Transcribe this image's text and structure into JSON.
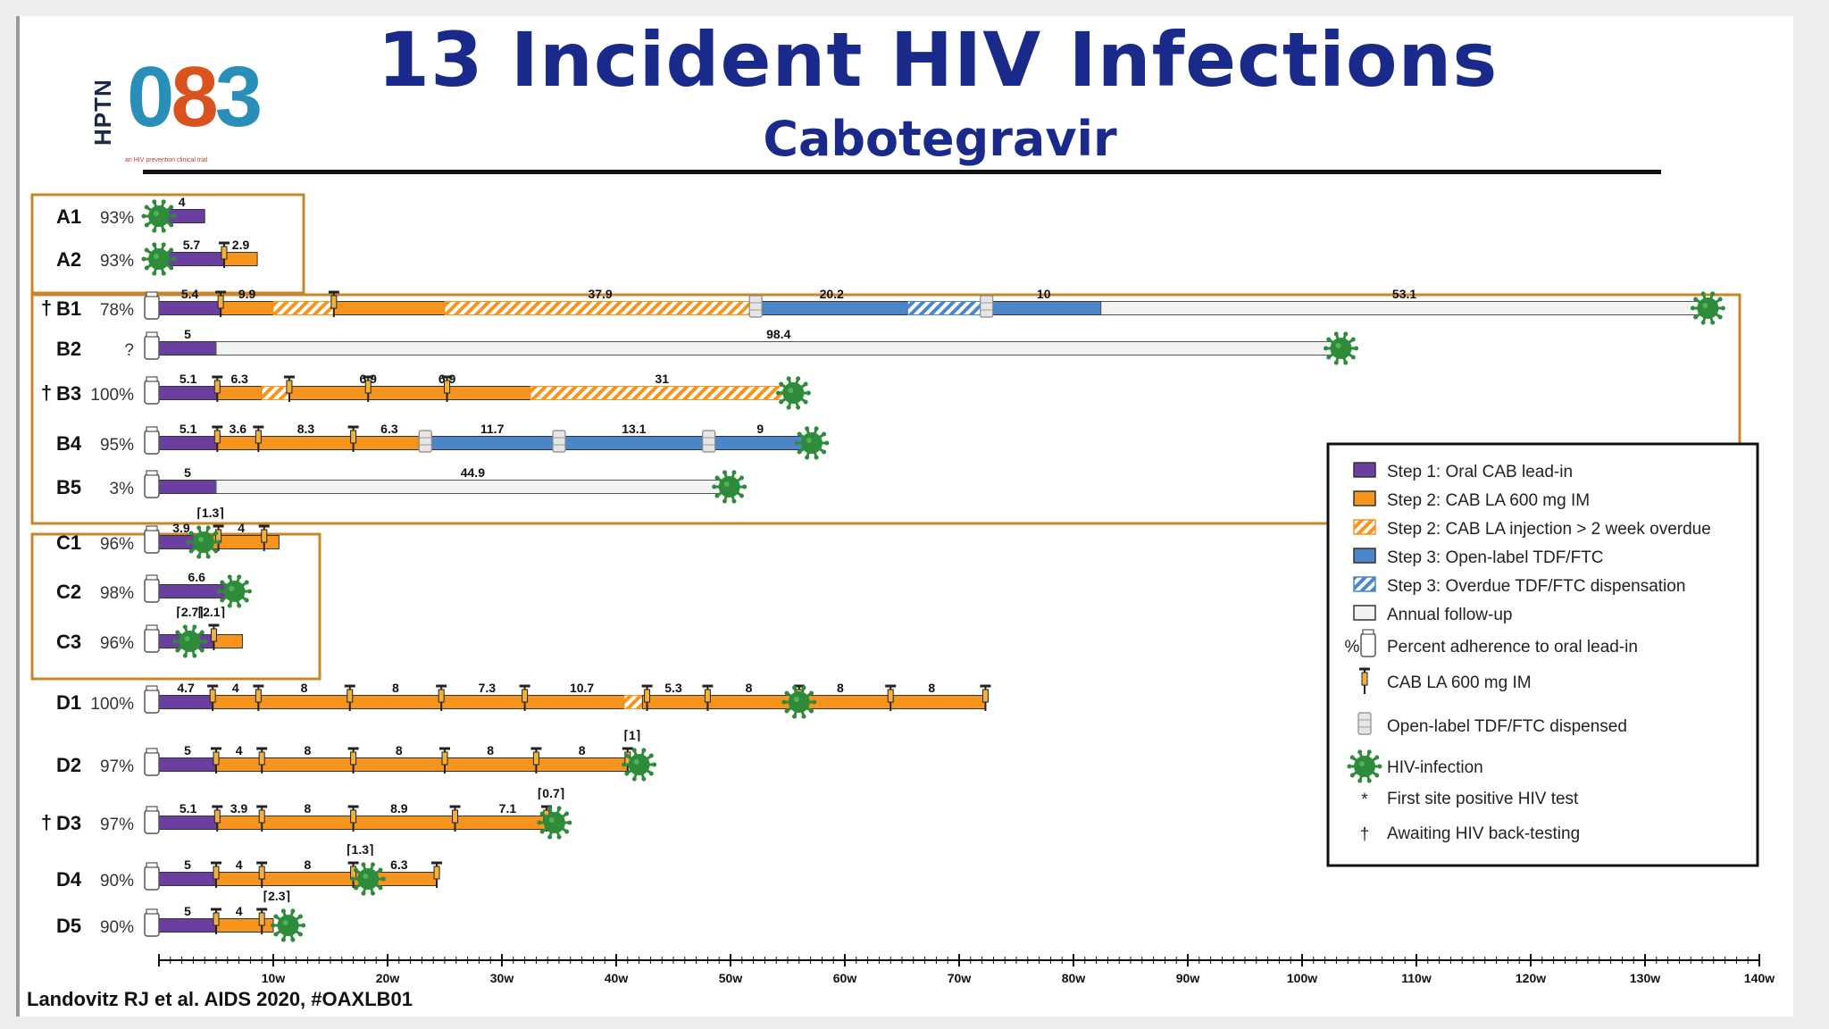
{
  "title": "13 Incident HIV Infections",
  "subtitle": "Cabotegravir",
  "citation": "Landovitz RJ et al. AIDS 2020, #OAXLB01",
  "logo": {
    "brand": "HPTN",
    "number_left": "0",
    "number_mid": "8",
    "number_right": "3",
    "tagline": "an HIV prevention clinical trial"
  },
  "colors": {
    "oral": "#6b3fa0",
    "cab": "#f7941d",
    "tdf": "#4a86c8",
    "annual": "#f2f2f2",
    "hiv": "#2e8b3a",
    "title": "#1a2a8a",
    "box": "#c8862a"
  },
  "chart_data": {
    "type": "timeline",
    "x_unit": "weeks",
    "xlim": [
      0,
      140
    ],
    "x_ticks": [
      "10w",
      "20w",
      "30w",
      "40w",
      "50w",
      "60w",
      "70w",
      "80w",
      "90w",
      "100w",
      "110w",
      "120w",
      "130w",
      "140w"
    ],
    "rows": [
      {
        "id": "A1",
        "pct": "93%",
        "group": "A",
        "dagger": false,
        "bottle": false,
        "segments": [
          {
            "type": "oral",
            "start": 0,
            "end": 4,
            "label": "4"
          }
        ],
        "injections": [],
        "tdf": [],
        "infection": 0,
        "annotations": []
      },
      {
        "id": "A2",
        "pct": "93%",
        "group": "A",
        "dagger": false,
        "bottle": false,
        "segments": [
          {
            "type": "oral",
            "start": 0,
            "end": 5.7,
            "label": "5.7"
          },
          {
            "type": "cab",
            "start": 5.7,
            "end": 8.6,
            "label": "2.9"
          }
        ],
        "injections": [
          5.7
        ],
        "tdf": [],
        "infection": 0,
        "annotations": []
      },
      {
        "id": "B1",
        "pct": "78%",
        "group": "B",
        "dagger": true,
        "bottle": true,
        "segments": [
          {
            "type": "oral",
            "start": 0,
            "end": 5.4,
            "label": "5.4"
          },
          {
            "type": "cab",
            "start": 5.4,
            "end": 10,
            "label": "9.9"
          },
          {
            "type": "cab_overdue",
            "start": 10,
            "end": 15.3,
            "label": ""
          },
          {
            "type": "cab",
            "start": 15.3,
            "end": 25,
            "label": ""
          },
          {
            "type": "cab_overdue",
            "start": 25,
            "end": 52.2,
            "label": "37.9"
          },
          {
            "type": "tdf",
            "start": 52.2,
            "end": 65.5,
            "label": "20.2"
          },
          {
            "type": "tdf_overdue",
            "start": 65.5,
            "end": 72.4,
            "label": ""
          },
          {
            "type": "tdf",
            "start": 72.4,
            "end": 82.4,
            "label": "10"
          },
          {
            "type": "annual",
            "start": 82.4,
            "end": 135.5,
            "label": "53.1"
          }
        ],
        "injections": [
          5.4,
          15.3
        ],
        "tdf": [
          52.2,
          72.4
        ],
        "infection": 135.5,
        "annotations": []
      },
      {
        "id": "B2",
        "pct": "?",
        "group": "B",
        "dagger": false,
        "bottle": true,
        "segments": [
          {
            "type": "oral",
            "start": 0,
            "end": 5,
            "label": "5"
          },
          {
            "type": "annual",
            "start": 5,
            "end": 103.4,
            "label": "98.4"
          }
        ],
        "injections": [],
        "tdf": [],
        "infection": 103.4,
        "annotations": []
      },
      {
        "id": "B3",
        "pct": "100%",
        "group": "B",
        "dagger": true,
        "bottle": true,
        "segments": [
          {
            "type": "oral",
            "start": 0,
            "end": 5.1,
            "label": "5.1"
          },
          {
            "type": "cab",
            "start": 5.1,
            "end": 9,
            "label": "6.3"
          },
          {
            "type": "cab_overdue",
            "start": 9,
            "end": 11.4,
            "label": ""
          },
          {
            "type": "cab",
            "start": 11.4,
            "end": 32.5,
            "label": ""
          },
          {
            "type": "cab_overdue",
            "start": 32.5,
            "end": 55.5,
            "label": "31"
          }
        ],
        "seg_labels_extra": [
          {
            "x": 18.3,
            "label": "6.9"
          },
          {
            "x": 25.2,
            "label": "6.9"
          }
        ],
        "injections": [
          5.1,
          11.4,
          18.3,
          25.2
        ],
        "tdf": [],
        "infection": 55.5,
        "annotations": []
      },
      {
        "id": "B4",
        "pct": "95%",
        "group": "B",
        "dagger": false,
        "bottle": true,
        "segments": [
          {
            "type": "oral",
            "start": 0,
            "end": 5.1,
            "label": "5.1"
          },
          {
            "type": "cab",
            "start": 5.1,
            "end": 8.7,
            "label": "3.6"
          },
          {
            "type": "cab",
            "start": 8.7,
            "end": 17,
            "label": "8.3"
          },
          {
            "type": "cab",
            "start": 17,
            "end": 23.3,
            "label": "6.3"
          },
          {
            "type": "tdf",
            "start": 23.3,
            "end": 35,
            "label": "11.7"
          },
          {
            "type": "tdf",
            "start": 35,
            "end": 48.1,
            "label": "13.1"
          },
          {
            "type": "tdf",
            "start": 48.1,
            "end": 57.1,
            "label": "9"
          }
        ],
        "injections": [
          5.1,
          8.7,
          17
        ],
        "tdf": [
          23.3,
          35,
          48.1
        ],
        "infection": 57.1,
        "annotations": []
      },
      {
        "id": "B5",
        "pct": "3%",
        "group": "B",
        "dagger": false,
        "bottle": true,
        "segments": [
          {
            "type": "oral",
            "start": 0,
            "end": 5,
            "label": "5"
          },
          {
            "type": "annual",
            "start": 5,
            "end": 49.9,
            "label": "44.9"
          }
        ],
        "injections": [],
        "tdf": [],
        "infection": 49.9,
        "annotations": []
      },
      {
        "id": "C1",
        "pct": "96%",
        "group": "C",
        "dagger": false,
        "bottle": true,
        "segments": [
          {
            "type": "oral",
            "start": 0,
            "end": 3.9,
            "label": "3.9"
          },
          {
            "type": "cab",
            "start": 3.9,
            "end": 10.5,
            "label": "4"
          }
        ],
        "injections": [
          5.2,
          9.2
        ],
        "tdf": [],
        "infection": 3.9,
        "annotations": [
          {
            "x": 4.5,
            "text": "1.3"
          }
        ]
      },
      {
        "id": "C2",
        "pct": "98%",
        "group": "C",
        "dagger": false,
        "bottle": true,
        "segments": [
          {
            "type": "oral",
            "start": 0,
            "end": 6.6,
            "label": "6.6"
          }
        ],
        "injections": [],
        "tdf": [],
        "infection": 6.6,
        "annotations": []
      },
      {
        "id": "C3",
        "pct": "96%",
        "group": "C",
        "dagger": false,
        "bottle": true,
        "segments": [
          {
            "type": "oral",
            "start": 0,
            "end": 4.8,
            "label": ""
          },
          {
            "type": "cab",
            "start": 4.8,
            "end": 7.3,
            "label": ""
          }
        ],
        "injections": [
          4.8
        ],
        "tdf": [],
        "infection": 2.7,
        "annotations": [
          {
            "x": 2.7,
            "text": "2.7"
          },
          {
            "x": 4.6,
            "text": "2.1"
          }
        ]
      },
      {
        "id": "D1",
        "pct": "100%",
        "group": "D",
        "dagger": false,
        "bottle": true,
        "segments": [
          {
            "type": "oral",
            "start": 0,
            "end": 4.7,
            "label": "4.7"
          },
          {
            "type": "cab",
            "start": 4.7,
            "end": 40.7,
            "label": ""
          },
          {
            "type": "cab_overdue",
            "start": 40.7,
            "end": 42.3,
            "label": ""
          },
          {
            "type": "cab",
            "start": 42.3,
            "end": 72.3,
            "label": ""
          }
        ],
        "seg_labels_extra": [
          {
            "x": 6.7,
            "label": "4"
          },
          {
            "x": 12.7,
            "label": "8"
          },
          {
            "x": 20.7,
            "label": "8"
          },
          {
            "x": 28.7,
            "label": "7.3"
          },
          {
            "x": 37,
            "label": "10.7"
          },
          {
            "x": 45,
            "label": "5.3"
          },
          {
            "x": 51.6,
            "label": "8"
          },
          {
            "x": 59.6,
            "label": "8"
          },
          {
            "x": 67.6,
            "label": "8"
          }
        ],
        "injections": [
          4.7,
          8.7,
          16.7,
          24.7,
          32,
          42.7,
          48,
          56,
          64,
          72.3
        ],
        "tdf": [],
        "infection": 56,
        "annotations": []
      },
      {
        "id": "D2",
        "pct": "97%",
        "group": "D",
        "dagger": false,
        "bottle": true,
        "segments": [
          {
            "type": "oral",
            "start": 0,
            "end": 5,
            "label": "5"
          },
          {
            "type": "cab",
            "start": 5,
            "end": 41,
            "label": ""
          }
        ],
        "seg_labels_extra": [
          {
            "x": 7,
            "label": "4"
          },
          {
            "x": 13,
            "label": "8"
          },
          {
            "x": 21,
            "label": "8"
          },
          {
            "x": 29,
            "label": "8"
          },
          {
            "x": 37,
            "label": "8"
          }
        ],
        "injections": [
          5,
          9,
          17,
          25,
          33,
          41
        ],
        "tdf": [],
        "infection": 42,
        "annotations": [
          {
            "x": 41.4,
            "text": "1"
          }
        ]
      },
      {
        "id": "D3",
        "pct": "97%",
        "group": "D",
        "dagger": true,
        "bottle": true,
        "segments": [
          {
            "type": "oral",
            "start": 0,
            "end": 5.1,
            "label": "5.1"
          },
          {
            "type": "cab",
            "start": 5.1,
            "end": 33.9,
            "label": ""
          }
        ],
        "seg_labels_extra": [
          {
            "x": 7,
            "label": "3.9"
          },
          {
            "x": 13,
            "label": "8"
          },
          {
            "x": 21,
            "label": "8.9"
          },
          {
            "x": 30.5,
            "label": "7.1"
          }
        ],
        "injections": [
          5.1,
          9,
          17,
          25.9,
          33.9
        ],
        "tdf": [],
        "infection": 34.6,
        "annotations": [
          {
            "x": 34.3,
            "text": "0.7"
          }
        ]
      },
      {
        "id": "D4",
        "pct": "90%",
        "group": "D",
        "dagger": false,
        "bottle": true,
        "segments": [
          {
            "type": "oral",
            "start": 0,
            "end": 5,
            "label": "5"
          },
          {
            "type": "cab",
            "start": 5,
            "end": 24.3,
            "label": ""
          }
        ],
        "seg_labels_extra": [
          {
            "x": 7,
            "label": "4"
          },
          {
            "x": 13,
            "label": "8"
          },
          {
            "x": 21,
            "label": "6.3"
          }
        ],
        "injections": [
          5,
          9,
          17,
          24.3
        ],
        "tdf": [],
        "infection": 18.3,
        "annotations": [
          {
            "x": 17.6,
            "text": "1.3"
          }
        ]
      },
      {
        "id": "D5",
        "pct": "90%",
        "group": "D",
        "dagger": false,
        "bottle": true,
        "segments": [
          {
            "type": "oral",
            "start": 0,
            "end": 5,
            "label": "5"
          },
          {
            "type": "cab",
            "start": 5,
            "end": 10,
            "label": ""
          }
        ],
        "seg_labels_extra": [
          {
            "x": 7,
            "label": "4"
          }
        ],
        "injections": [
          5,
          9
        ],
        "tdf": [],
        "infection": 11.3,
        "annotations": [
          {
            "x": 10.3,
            "text": "2.3"
          }
        ]
      }
    ],
    "legend": [
      {
        "key": "oral",
        "label": "Step 1: Oral CAB lead-in"
      },
      {
        "key": "cab",
        "label": "Step 2: CAB LA 600 mg IM"
      },
      {
        "key": "cab_overdue",
        "label": "Step 2: CAB LA injection > 2 week overdue"
      },
      {
        "key": "tdf",
        "label": "Step 3: Open-label TDF/FTC"
      },
      {
        "key": "tdf_overdue",
        "label": "Step 3: Overdue TDF/FTC dispensation"
      },
      {
        "key": "annual",
        "label": "Annual follow-up"
      },
      {
        "key": "bottle",
        "label": "Percent adherence to oral lead-in",
        "prefix": "%"
      },
      {
        "key": "syringe",
        "label": "CAB LA 600 mg IM"
      },
      {
        "key": "tdf_bottle",
        "label": "Open-label TDF/FTC dispensed"
      },
      {
        "key": "hiv",
        "label": "HIV-infection"
      },
      {
        "key": "star",
        "label": "First site positive HIV test",
        "symbol": "*"
      },
      {
        "key": "dagger",
        "label": "Awaiting HIV back-testing",
        "symbol": "†"
      }
    ]
  }
}
